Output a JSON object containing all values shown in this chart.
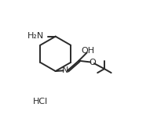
{
  "bg_color": "#ffffff",
  "line_color": "#2a2a2a",
  "text_color": "#2a2a2a",
  "linewidth": 1.4,
  "figsize": [
    2.14,
    1.51
  ],
  "dpi": 100,
  "NH2_label": "H₂N",
  "NH2_fontsize": 8.0,
  "NH_label": "N",
  "NH_fontsize": 8.0,
  "OH_label": "OH",
  "OH_fontsize": 8.0,
  "O_label": "O",
  "O_fontsize": 8.0,
  "HCl_label": "HCl",
  "HCl_fontsize": 8.0
}
